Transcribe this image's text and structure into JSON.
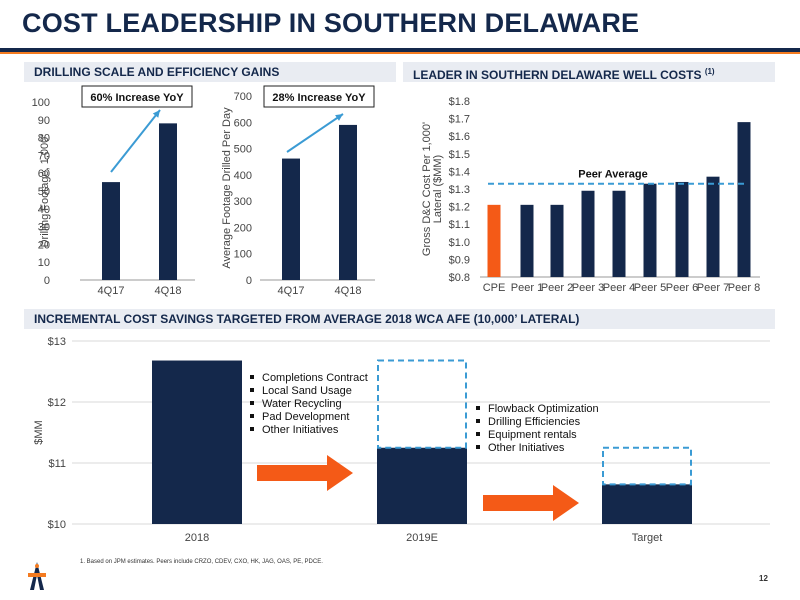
{
  "page": {
    "title": "COST LEADERSHIP IN SOUTHERN DELAWARE",
    "footnote": "1.   Based on JPM estimates. Peers include CRZO, CDEV, CXO, HK, JAG, OAS, PE, PDCE.",
    "page_number": "12"
  },
  "sections": {
    "left_top": "DRILLING SCALE AND EFFICIENCY GAINS",
    "right_top": "LEADER IN SOUTHERN DELAWARE WELL COSTS",
    "right_top_sup": "(1)",
    "bottom": "INCREMENTAL COST SAVINGS TARGETED FROM AVERAGE 2018 WCA AFE (10,000’ LATERAL)"
  },
  "colors": {
    "navy": "#14284b",
    "orange": "#f45a17",
    "arrow_blue": "#3b9bd4",
    "dash_blue": "#3b9bd4"
  },
  "chart_data": [
    {
      "type": "bar",
      "categories": [
        "4Q17",
        "4Q18"
      ],
      "values": [
        55,
        88
      ],
      "ylabel": "Drilling Footage, 1,000'",
      "ylim": [
        0,
        100
      ],
      "yticks": [
        "0",
        "10",
        "20",
        "30",
        "40",
        "50",
        "60",
        "70",
        "80",
        "90",
        "100"
      ],
      "annotation": "60% Increase YoY"
    },
    {
      "type": "bar",
      "categories": [
        "4Q17",
        "4Q18"
      ],
      "values": [
        462,
        590
      ],
      "ylabel": "Average Footage Drilled Per Day",
      "ylim": [
        0,
        700
      ],
      "yticks": [
        "0",
        "100",
        "200",
        "300",
        "400",
        "500",
        "600",
        "700"
      ],
      "annotation": "28% Increase YoY"
    },
    {
      "type": "bar",
      "categories": [
        "CPE",
        "Peer 1",
        "Peer 2",
        "Peer 3",
        "Peer 4",
        "Peer 5",
        "Peer 6",
        "Peer 7",
        "Peer 8"
      ],
      "values": [
        1.21,
        1.21,
        1.21,
        1.29,
        1.29,
        1.33,
        1.34,
        1.37,
        1.68
      ],
      "ylabel": "Gross D&C Cost Per 1,000' Lateral ($MM)",
      "ylim": [
        0.8,
        1.8
      ],
      "yticks": [
        "$0.8",
        "$0.9",
        "$1.0",
        "$1.1",
        "$1.2",
        "$1.3",
        "$1.4",
        "$1.5",
        "$1.6",
        "$1.7",
        "$1.8"
      ],
      "reference_line": {
        "label": "Peer Average",
        "value": 1.33
      }
    },
    {
      "type": "bar",
      "categories": [
        "2018",
        "2019E",
        "Target"
      ],
      "values": [
        12.68,
        11.25,
        10.65
      ],
      "previous_levels": [
        null,
        12.68,
        11.25
      ],
      "ylabel": "$MM",
      "ylim": [
        10,
        13
      ],
      "yticks": [
        "$10",
        "$11",
        "$12",
        "$13"
      ],
      "notes_2019E": [
        "Completions Contract",
        "Local Sand Usage",
        "Water Recycling",
        "Pad Development",
        "Other Initiatives"
      ],
      "notes_target": [
        "Flowback Optimization",
        "Drilling Efficiencies",
        "Equipment rentals",
        "Other Initiatives"
      ]
    }
  ]
}
